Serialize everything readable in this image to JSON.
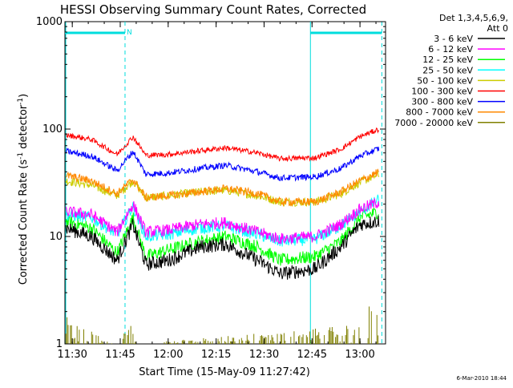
{
  "chart_data": {
    "type": "line",
    "title": "HESSI Observing Summary Count Rates, Corrected",
    "xlabel": "Start Time (15-May-09 11:27:42)",
    "ylabel_main": "Corrected Count Rate (s",
    "ylabel_sup1": "-1",
    "ylabel_mid": " detector",
    "ylabel_sup2": "-1",
    "ylabel_end": ")",
    "yscale": "log",
    "ylim": [
      1,
      1000
    ],
    "xlim": [
      "11:27:42",
      "13:08:00"
    ],
    "x_ticks": [
      "11:30",
      "11:45",
      "12:00",
      "12:15",
      "12:30",
      "12:45",
      "13:00"
    ],
    "y_ticks": [
      "1",
      "10",
      "100",
      "1000"
    ],
    "legend_header": [
      "Det 1,3,4,5,6,9,",
      "Att 0"
    ],
    "legend_position": "right",
    "flag_label": "N",
    "footer_timestamp": "6-Mar-2010 18:44",
    "annotations": {
      "night_intervals": [
        [
          "11:27:42",
          "11:46:30"
        ],
        [
          "12:44:30",
          "13:06:50"
        ]
      ],
      "saa_boundaries": [
        "11:27:42",
        "11:46:30",
        "12:44:30",
        "13:06:50"
      ]
    },
    "series": [
      {
        "name": "3 - 6 keV",
        "color": "#000000",
        "points": [
          [
            "11:28",
            12
          ],
          [
            "11:36",
            10
          ],
          [
            "11:44",
            6
          ],
          [
            "11:49",
            13
          ],
          [
            "11:53",
            5.5
          ],
          [
            "12:00",
            6
          ],
          [
            "12:10",
            8
          ],
          [
            "12:18",
            8.5
          ],
          [
            "12:28",
            6
          ],
          [
            "12:35",
            4.5
          ],
          [
            "12:46",
            5
          ],
          [
            "12:54",
            8
          ],
          [
            "13:00",
            13
          ],
          [
            "13:06",
            14
          ]
        ]
      },
      {
        "name": "6 - 12 keV",
        "color": "#ff00ff",
        "points": [
          [
            "11:28",
            17
          ],
          [
            "11:36",
            16
          ],
          [
            "11:44",
            11
          ],
          [
            "11:49",
            20
          ],
          [
            "11:53",
            11
          ],
          [
            "12:00",
            11.5
          ],
          [
            "12:10",
            13
          ],
          [
            "12:18",
            13.5
          ],
          [
            "12:28",
            11
          ],
          [
            "12:35",
            9.5
          ],
          [
            "12:46",
            10
          ],
          [
            "12:54",
            13
          ],
          [
            "13:00",
            18
          ],
          [
            "13:06",
            21
          ]
        ]
      },
      {
        "name": "12 - 25 keV",
        "color": "#00ff00",
        "points": [
          [
            "11:28",
            14
          ],
          [
            "11:36",
            12
          ],
          [
            "11:44",
            7
          ],
          [
            "11:49",
            15
          ],
          [
            "11:53",
            6.5
          ],
          [
            "12:00",
            7.5
          ],
          [
            "12:10",
            9
          ],
          [
            "12:18",
            10
          ],
          [
            "12:28",
            8
          ],
          [
            "12:35",
            6
          ],
          [
            "12:46",
            6.5
          ],
          [
            "12:54",
            9
          ],
          [
            "13:00",
            15
          ],
          [
            "13:06",
            17
          ]
        ]
      },
      {
        "name": "25 - 50 keV",
        "color": "#00ffff",
        "points": [
          [
            "11:28",
            16
          ],
          [
            "11:36",
            15
          ],
          [
            "11:44",
            10.5
          ],
          [
            "11:49",
            19
          ],
          [
            "11:53",
            10
          ],
          [
            "12:00",
            10.5
          ],
          [
            "12:10",
            12
          ],
          [
            "12:18",
            12.5
          ],
          [
            "12:28",
            10.5
          ],
          [
            "12:35",
            9
          ],
          [
            "12:46",
            9.5
          ],
          [
            "12:54",
            12.5
          ],
          [
            "13:00",
            17
          ],
          [
            "13:06",
            22
          ]
        ]
      },
      {
        "name": "50 - 100 keV",
        "color": "#cccc00",
        "points": [
          [
            "11:28",
            33
          ],
          [
            "11:36",
            30
          ],
          [
            "11:44",
            24
          ],
          [
            "11:49",
            33
          ],
          [
            "11:53",
            23
          ],
          [
            "12:00",
            24
          ],
          [
            "12:10",
            26
          ],
          [
            "12:18",
            27
          ],
          [
            "12:28",
            24
          ],
          [
            "12:35",
            21
          ],
          [
            "12:46",
            21
          ],
          [
            "12:54",
            25
          ],
          [
            "13:00",
            32
          ],
          [
            "13:06",
            38
          ]
        ]
      },
      {
        "name": "100 - 300 keV",
        "color": "#ff0000",
        "points": [
          [
            "11:28",
            88
          ],
          [
            "11:36",
            80
          ],
          [
            "11:44",
            58
          ],
          [
            "11:49",
            85
          ],
          [
            "11:53",
            57
          ],
          [
            "12:00",
            58
          ],
          [
            "12:10",
            63
          ],
          [
            "12:18",
            67
          ],
          [
            "12:28",
            60
          ],
          [
            "12:35",
            53
          ],
          [
            "12:46",
            54
          ],
          [
            "12:54",
            65
          ],
          [
            "13:00",
            85
          ],
          [
            "13:06",
            100
          ]
        ]
      },
      {
        "name": "300 - 800 keV",
        "color": "#0000ff",
        "points": [
          [
            "11:28",
            62
          ],
          [
            "11:36",
            56
          ],
          [
            "11:44",
            41
          ],
          [
            "11:49",
            62
          ],
          [
            "11:53",
            38
          ],
          [
            "12:00",
            39
          ],
          [
            "12:10",
            43
          ],
          [
            "12:18",
            46
          ],
          [
            "12:28",
            40
          ],
          [
            "12:35",
            35
          ],
          [
            "12:46",
            36
          ],
          [
            "12:54",
            43
          ],
          [
            "13:00",
            56
          ],
          [
            "13:06",
            66
          ]
        ]
      },
      {
        "name": "800 - 7000 keV",
        "color": "#ff8800",
        "points": [
          [
            "11:28",
            37
          ],
          [
            "11:36",
            33
          ],
          [
            "11:44",
            25
          ],
          [
            "11:49",
            34
          ],
          [
            "11:53",
            23
          ],
          [
            "12:00",
            24
          ],
          [
            "12:10",
            26
          ],
          [
            "12:18",
            28
          ],
          [
            "12:28",
            25
          ],
          [
            "12:35",
            21
          ],
          [
            "12:46",
            21
          ],
          [
            "12:54",
            26
          ],
          [
            "13:00",
            33
          ],
          [
            "13:06",
            40
          ]
        ]
      },
      {
        "name": "7000 - 20000 keV",
        "color": "#808000",
        "points": [
          [
            "11:28",
            1.8
          ],
          [
            "11:32",
            1.5
          ],
          [
            "11:44",
            1
          ],
          [
            "11:48",
            1.6
          ],
          [
            "11:50",
            1
          ],
          [
            "12:58",
            1.5
          ],
          [
            "13:04",
            2.6
          ],
          [
            "13:06",
            1.8
          ]
        ]
      }
    ]
  }
}
